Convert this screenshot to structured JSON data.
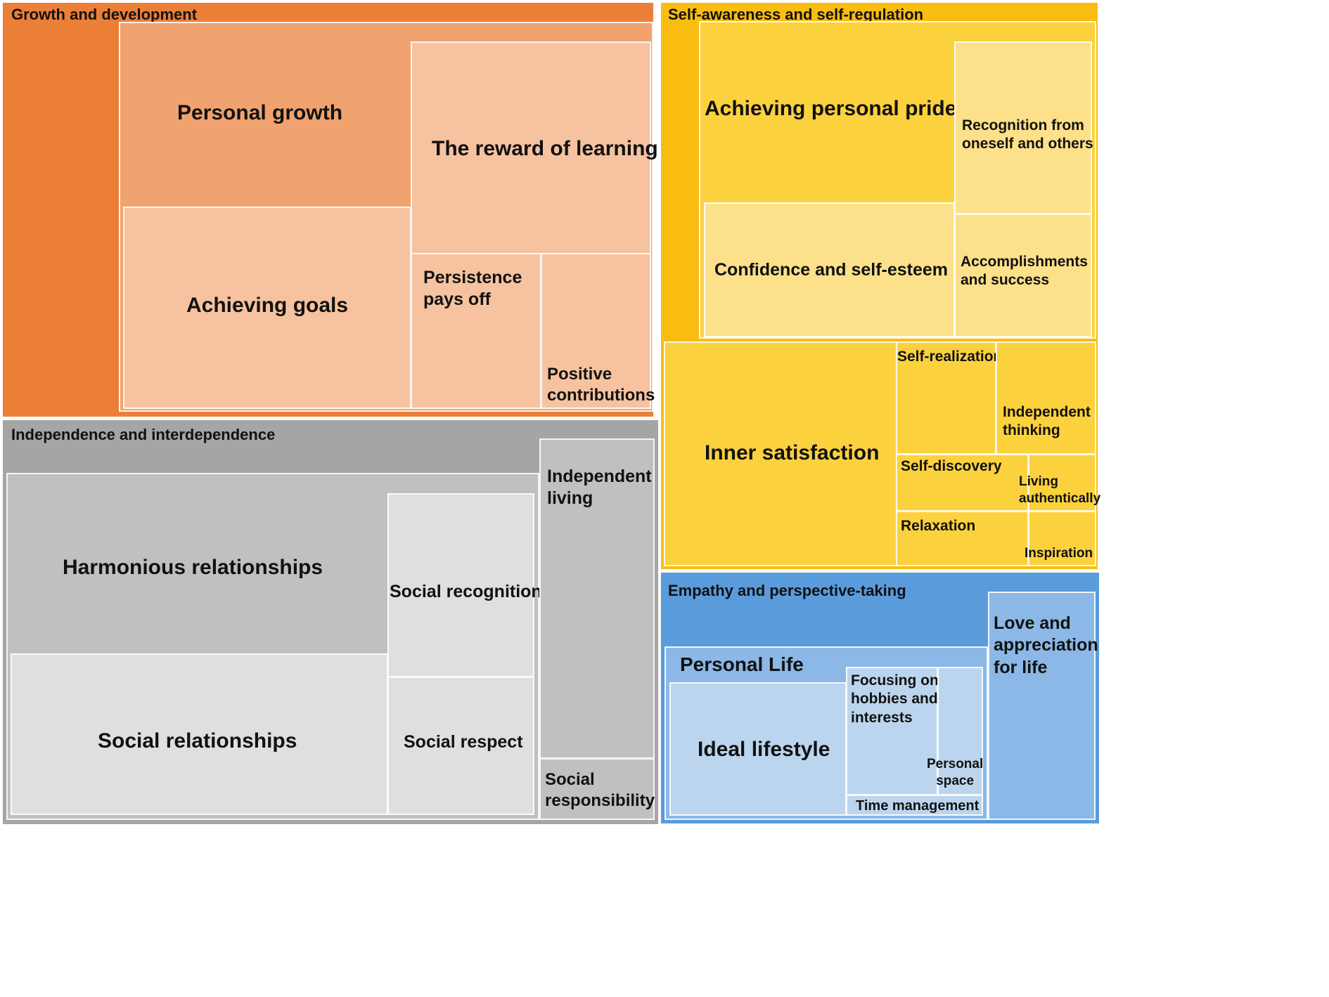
{
  "colors": {
    "growth_outer": "#ec7f37",
    "growth_mid": "#f0a26f",
    "growth_light": "#f6c29f",
    "selfaware_outer": "#f9bd12",
    "selfaware_mid": "#fcd13e",
    "selfaware_light": "#fde08a",
    "independence_outer": "#a5a5a5",
    "independence_mid": "#c0c0c0",
    "independence_light": "#dfdfdf",
    "empathy_outer": "#5a9bdc",
    "empathy_mid": "#8bb8e6",
    "empathy_light": "#bcd5ee"
  },
  "groups": {
    "growth": "Growth and development",
    "selfaware": "Self-awareness and self-regulation",
    "independence": "Independence and interdependence",
    "empathy": "Empathy and perspective-taking"
  },
  "tiles": {
    "personal_growth": "Personal growth",
    "reward_of_learning": "The reward of learning",
    "achieving_goals": "Achieving goals",
    "persistence": "Persistence\npays off",
    "positive_contributions": "Positive\ncontributions",
    "personal_pride": "Achieving personal pride",
    "recognition": "Recognition from\noneself and others",
    "confidence": "Confidence and self-esteem",
    "accomplishments": "Accomplishments\nand success",
    "inner_satisfaction": "Inner satisfaction",
    "self_realization": "Self-realization",
    "independent_thinking": "Independent\nthinking",
    "self_discovery": "Self-discovery",
    "living_authentically": "Living\nauthentically",
    "relaxation": "Relaxation",
    "inspiration": "Inspiration",
    "harmonious": "Harmonious relationships",
    "social_recognition": "Social recognition",
    "social_relationships": "Social relationships",
    "social_respect": "Social respect",
    "independent_living": "Independent\nliving",
    "social_responsibility": "Social\nresponsibility",
    "personal_life": "Personal Life",
    "ideal_lifestyle": "Ideal lifestyle",
    "hobbies": "Focusing on\nhobbies and\ninterests",
    "personal_space": "Personal\nspace",
    "time_management": "Time management",
    "love_appreciation": "Love and\nappreciation\nfor life"
  }
}
